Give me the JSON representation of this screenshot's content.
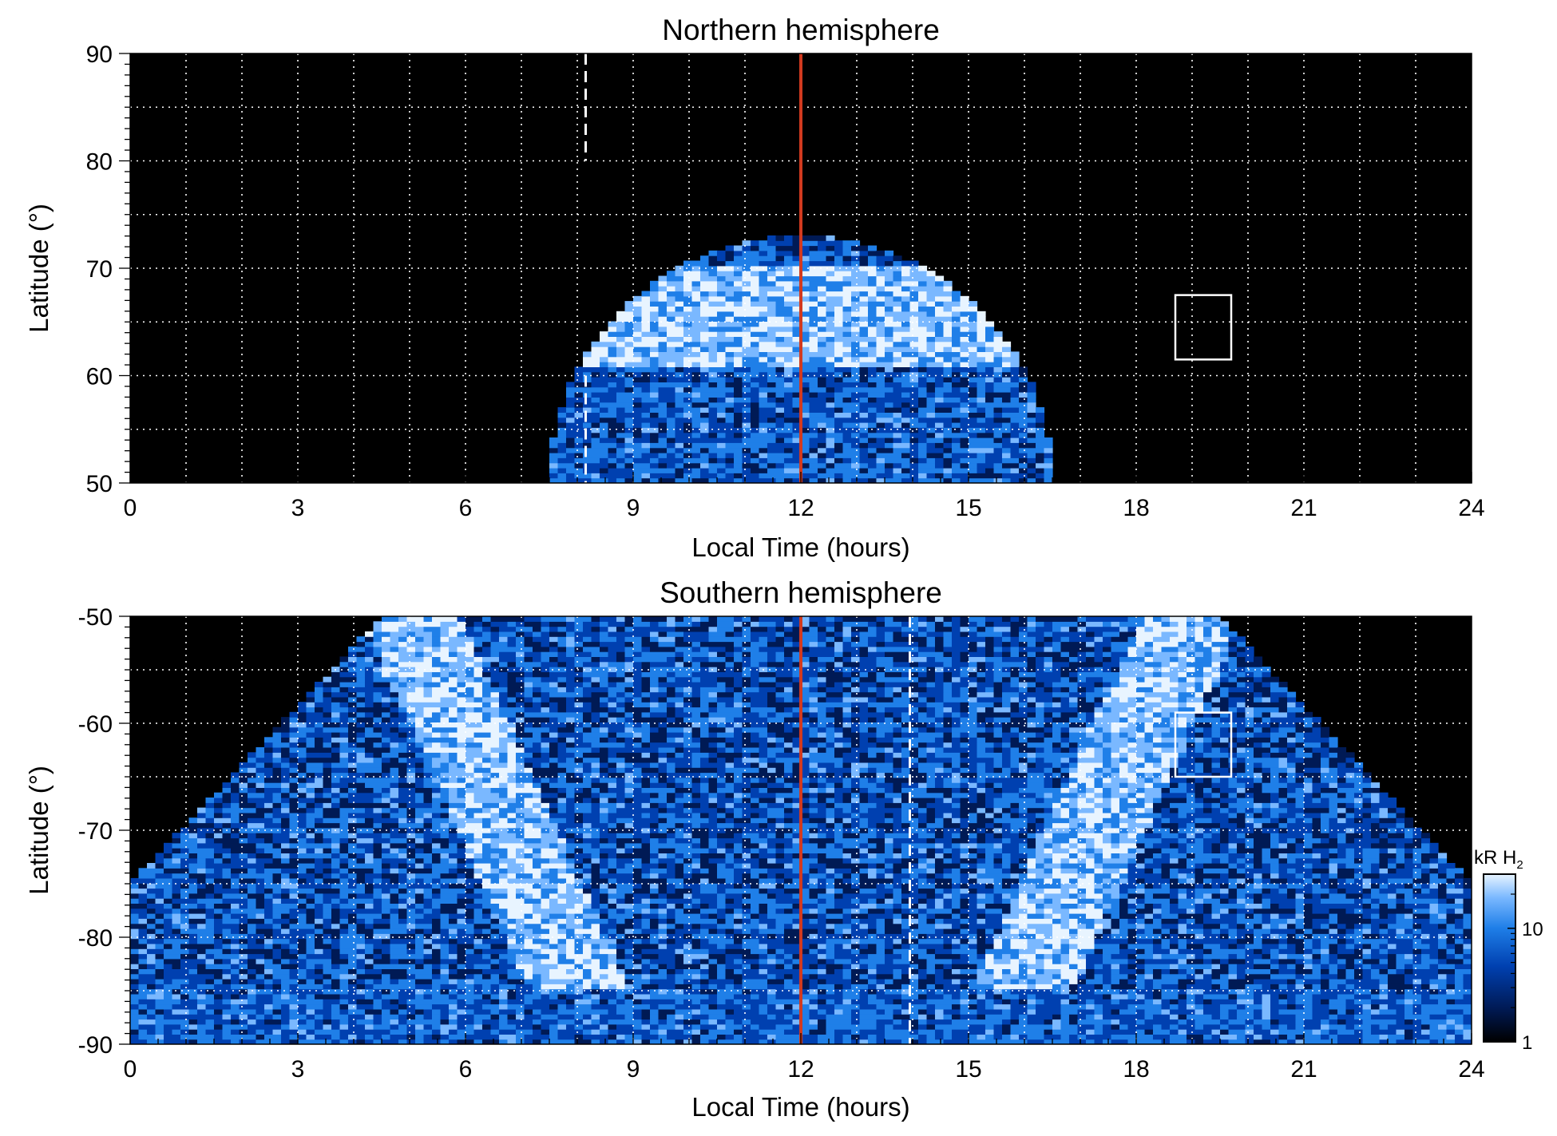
{
  "chart_data": [
    {
      "type": "heatmap",
      "title": "Northern hemisphere",
      "xlabel": "Local Time (hours)",
      "ylabel": "Latitude (°)",
      "xlim": [
        0,
        24
      ],
      "ylim": [
        50,
        90
      ],
      "xticks": [
        "0",
        "3",
        "6",
        "9",
        "12",
        "15",
        "18",
        "21",
        "24"
      ],
      "yticks": [
        "50",
        "60",
        "70",
        "80",
        "90"
      ],
      "grid": "dotted",
      "background": "#000000",
      "emission": {
        "center_lt": 12.0,
        "lt_min": 7.5,
        "lt_max": 16.5,
        "lat_edge": 50,
        "lat_peak": 73,
        "oval_band_lat": [
          61,
          70
        ]
      },
      "reference_lines": [
        {
          "style": "solid",
          "color": "#d23a1f",
          "x": 12.0
        },
        {
          "style": "dashed",
          "color": "#ffffff",
          "x": 8.15,
          "y_range": [
            80,
            90
          ]
        },
        {
          "style": "dashed",
          "color": "#ffffff",
          "x": 8.15,
          "y_range": [
            50,
            60
          ]
        }
      ],
      "box": {
        "x": [
          18.7,
          19.7
        ],
        "y": [
          61.5,
          67.5
        ],
        "color": "#ffffff"
      }
    },
    {
      "type": "heatmap",
      "title": "Southern hemisphere",
      "xlabel": "Local Time (hours)",
      "ylabel": "Latitude (°)",
      "xlim": [
        0,
        24
      ],
      "ylim": [
        -90,
        -50
      ],
      "xticks": [
        "0",
        "3",
        "6",
        "9",
        "12",
        "15",
        "18",
        "21",
        "24"
      ],
      "yticks": [
        "-50",
        "-60",
        "-70",
        "-80",
        "-90"
      ],
      "grid": "dotted",
      "background": "#000000",
      "emission": {
        "center_lt": 12.0,
        "lt_min": 0,
        "lt_max": 24,
        "lat_edge": -75,
        "lat_pole": -90,
        "oval_band_lt": [
          [
            4.5,
            5.5
          ],
          [
            18.5,
            19.5
          ]
        ]
      },
      "reference_lines": [
        {
          "style": "solid",
          "color": "#d23a1f",
          "x": 12.0
        },
        {
          "style": "dashed",
          "color": "#ffffff",
          "x": 13.95,
          "y_range": [
            -90,
            -50
          ]
        }
      ],
      "box": {
        "x": [
          18.7,
          19.7
        ],
        "y": [
          -65,
          -59
        ],
        "color": "#ffffff"
      }
    }
  ],
  "colorbar": {
    "title_main": "kR H",
    "title_sub": "2",
    "scale": "log",
    "range": [
      1,
      30
    ],
    "ticks": [
      "1",
      "10"
    ],
    "tick_values": [
      1,
      10
    ],
    "colors": [
      "#000000",
      "#001a55",
      "#0040b0",
      "#1f7fe8",
      "#7ab8ff",
      "#e8f4ff"
    ]
  }
}
